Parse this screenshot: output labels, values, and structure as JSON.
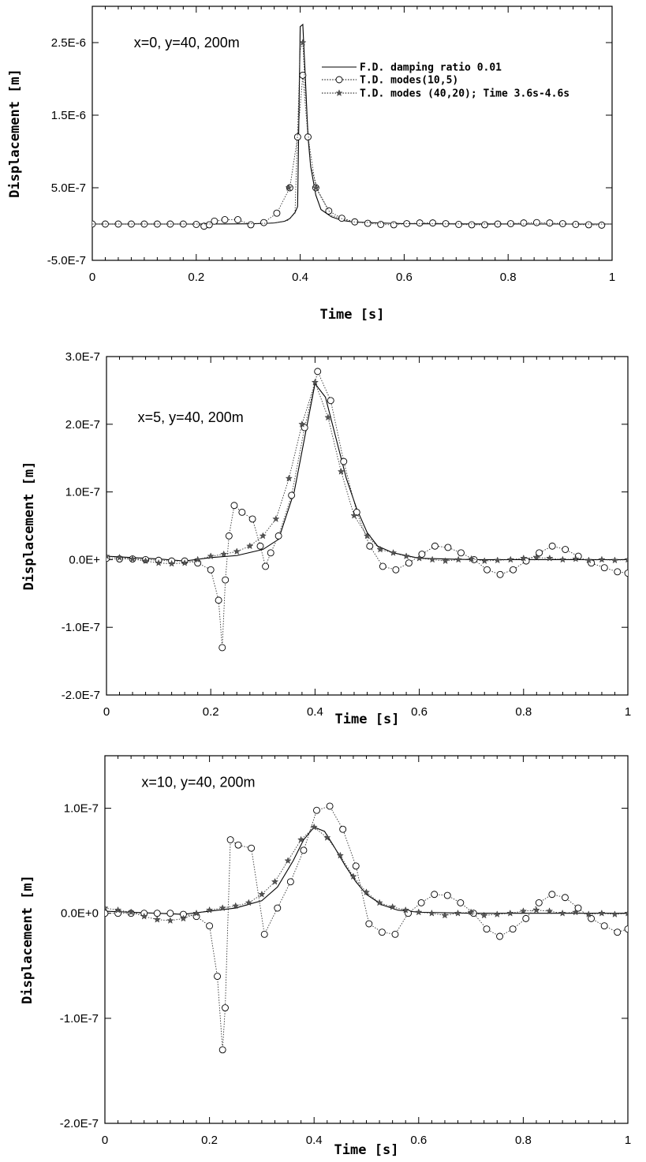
{
  "chart_data": [
    {
      "type": "line",
      "annotation": "x=0, y=40, 200m",
      "xlabel": "Time [s]",
      "ylabel": "Displacement [m]",
      "xlim": [
        0,
        1
      ],
      "ylim": [
        -5e-07,
        3e-06
      ],
      "xticks": [
        0,
        0.2,
        0.4,
        0.6,
        0.8,
        1
      ],
      "xtick_labels": [
        "0",
        "0.2",
        "0.4",
        "0.6",
        "0.8",
        "1"
      ],
      "yticks": [
        -5e-07,
        5e-07,
        1.5e-06,
        2.5e-06
      ],
      "ytick_labels": [
        "-5.0E-7",
        "5.0E-7",
        "1.5E-6",
        "2.5E-6"
      ],
      "grid": false,
      "legend_position": "top-right",
      "series": [
        {
          "name": "F.D.  damping ratio 0.01",
          "style": "solid",
          "marker": "none",
          "x": [
            0,
            0.1,
            0.2,
            0.25,
            0.3,
            0.33,
            0.35,
            0.37,
            0.38,
            0.39,
            0.395,
            0.4,
            0.405,
            0.41,
            0.415,
            0.42,
            0.43,
            0.44,
            0.46,
            0.48,
            0.5,
            0.55,
            0.6,
            0.7,
            0.8,
            0.9,
            1.0
          ],
          "y": [
            0,
            0,
            0,
            1e-09,
            3e-09,
            8e-09,
            1.5e-08,
            3.8e-08,
            7.5e-08,
            1.6e-07,
            2.4e-07,
            2.72e-06,
            2.75e-06,
            2e-06,
            1.2e-06,
            8e-07,
            4e-07,
            2e-07,
            1e-07,
            5e-08,
            3e-08,
            1.5e-08,
            5e-09,
            2e-09,
            1e-09,
            0,
            0
          ]
        },
        {
          "name": "T.D.  modes(10,5)",
          "style": "dotted",
          "marker": "circle",
          "x": [
            0,
            0.025,
            0.05,
            0.075,
            0.1,
            0.125,
            0.15,
            0.175,
            0.2,
            0.215,
            0.225,
            0.235,
            0.255,
            0.28,
            0.305,
            0.33,
            0.355,
            0.38,
            0.395,
            0.405,
            0.415,
            0.43,
            0.455,
            0.48,
            0.505,
            0.53,
            0.555,
            0.58,
            0.605,
            0.63,
            0.655,
            0.68,
            0.705,
            0.73,
            0.755,
            0.78,
            0.805,
            0.83,
            0.855,
            0.88,
            0.905,
            0.93,
            0.955,
            0.98
          ],
          "y": [
            0,
            0,
            0,
            0,
            0,
            0,
            0,
            0,
            -5e-09,
            -3e-08,
            -1e-08,
            4e-08,
            6e-08,
            6e-08,
            -1e-08,
            2e-08,
            1.5e-07,
            5e-07,
            1.2e-06,
            2.05e-06,
            1.2e-06,
            5e-07,
            1.8e-07,
            8e-08,
            3e-08,
            1e-08,
            -5e-09,
            -1e-08,
            5e-09,
            1.5e-08,
            1.5e-08,
            5e-09,
            -5e-09,
            -1e-08,
            -1e-08,
            0,
            5e-09,
            1.5e-08,
            2e-08,
            1.5e-08,
            5e-09,
            -5e-09,
            -1e-08,
            -1.5e-08
          ]
        },
        {
          "name": "T.D.  modes (40,20); Time 3.6s-4.6s",
          "style": "dotted",
          "marker": "star",
          "x": [
            0,
            0.1,
            0.2,
            0.3,
            0.35,
            0.375,
            0.39,
            0.4,
            0.405,
            0.41,
            0.42,
            0.435,
            0.46,
            0.5,
            0.6,
            0.7,
            0.8,
            0.9,
            1.0
          ],
          "y": [
            0,
            0,
            0,
            3e-09,
            1.5e-08,
            4.5e-08,
            1.5e-07,
            2.4e-06,
            2.5e-06,
            1.8e-06,
            8e-07,
            4.5e-07,
            1.2e-07,
            3e-08,
            5e-09,
            2e-09,
            1e-09,
            0,
            0
          ],
          "marker_x": [
            0.378,
            0.405,
            0.43
          ],
          "marker_y": [
            5e-07,
            2.5e-06,
            5e-07
          ]
        }
      ]
    },
    {
      "type": "line",
      "annotation": "x=5, y=40, 200m",
      "xlabel": "Time [s]",
      "ylabel": "Displacement [m]",
      "xlim": [
        0,
        1
      ],
      "ylim": [
        -2e-07,
        3e-07
      ],
      "xticks": [
        0,
        0.2,
        0.4,
        0.6,
        0.8,
        1
      ],
      "xtick_labels": [
        "0",
        "0.2",
        "0.4",
        "0.6",
        "0.8",
        "1"
      ],
      "yticks": [
        -2e-07,
        -1e-07,
        0,
        1e-07,
        2e-07,
        3e-07
      ],
      "ytick_labels": [
        "-2.0E-7",
        "-1.0E-7",
        "0.0E+",
        "1.0E-7",
        "2.0E-7",
        "3.0E-7"
      ],
      "grid": false,
      "series": [
        {
          "style": "solid",
          "marker": "none",
          "x": [
            0,
            0.05,
            0.1,
            0.15,
            0.2,
            0.25,
            0.3,
            0.33,
            0.36,
            0.38,
            0.4,
            0.42,
            0.44,
            0.46,
            0.48,
            0.5,
            0.52,
            0.55,
            0.6,
            0.7,
            0.8,
            0.9,
            1.0
          ],
          "y": [
            5e-09,
            3e-09,
            1e-09,
            -2e-09,
            3e-09,
            6e-09,
            1.5e-08,
            3e-08,
            1e-07,
            1.8e-07,
            2.6e-07,
            2.4e-07,
            1.8e-07,
            1.2e-07,
            7.5e-08,
            4e-08,
            2e-08,
            1e-08,
            2e-09,
            0,
            0,
            0,
            0
          ]
        },
        {
          "style": "dotted",
          "marker": "circle",
          "x": [
            0,
            0.025,
            0.05,
            0.075,
            0.1,
            0.125,
            0.15,
            0.175,
            0.2,
            0.215,
            0.222,
            0.228,
            0.235,
            0.245,
            0.26,
            0.28,
            0.295,
            0.305,
            0.315,
            0.33,
            0.355,
            0.38,
            0.405,
            0.43,
            0.455,
            0.48,
            0.505,
            0.53,
            0.555,
            0.58,
            0.605,
            0.63,
            0.655,
            0.68,
            0.705,
            0.73,
            0.755,
            0.78,
            0.805,
            0.83,
            0.855,
            0.88,
            0.905,
            0.93,
            0.955,
            0.98,
            1.0
          ],
          "y": [
            2e-09,
            1e-09,
            1e-09,
            0,
            -1e-09,
            -2e-09,
            -2e-09,
            -5e-09,
            -1.5e-08,
            -6e-08,
            -1.3e-07,
            -3e-08,
            3.5e-08,
            8e-08,
            7e-08,
            6e-08,
            2e-08,
            -1e-08,
            1e-08,
            3.5e-08,
            9.5e-08,
            1.95e-07,
            2.78e-07,
            2.35e-07,
            1.45e-07,
            7e-08,
            2e-08,
            -1e-08,
            -1.5e-08,
            -5e-09,
            8e-09,
            2e-08,
            1.8e-08,
            1e-08,
            0,
            -1.5e-08,
            -2.2e-08,
            -1.5e-08,
            -2e-09,
            1e-08,
            2e-08,
            1.5e-08,
            5e-09,
            -5e-09,
            -1.2e-08,
            -1.8e-08,
            -2e-08
          ]
        },
        {
          "style": "dotted",
          "marker": "star",
          "x": [
            0,
            0.025,
            0.05,
            0.075,
            0.1,
            0.125,
            0.15,
            0.175,
            0.2,
            0.225,
            0.25,
            0.275,
            0.3,
            0.325,
            0.35,
            0.375,
            0.4,
            0.425,
            0.45,
            0.475,
            0.5,
            0.525,
            0.55,
            0.575,
            0.6,
            0.625,
            0.65,
            0.675,
            0.7,
            0.725,
            0.75,
            0.775,
            0.8,
            0.825,
            0.85,
            0.875,
            0.9,
            0.925,
            0.95,
            0.975,
            1.0
          ],
          "y": [
            5e-09,
            3e-09,
            1e-09,
            -2e-09,
            -5e-09,
            -6e-09,
            -5e-09,
            0,
            5e-09,
            8e-09,
            1.2e-08,
            2e-08,
            3.5e-08,
            6e-08,
            1.2e-07,
            2e-07,
            2.62e-07,
            2.1e-07,
            1.3e-07,
            6.5e-08,
            3.5e-08,
            1.5e-08,
            1e-08,
            5e-09,
            2e-09,
            0,
            -2e-09,
            0,
            1e-09,
            -2e-09,
            -1e-09,
            0,
            2e-09,
            3e-09,
            2e-09,
            0,
            1e-09,
            -1e-09,
            0,
            -1e-09,
            0
          ]
        }
      ]
    },
    {
      "type": "line",
      "annotation": "x=10, y=40, 200m",
      "xlabel": "Time [s]",
      "ylabel": "Displacement [m]",
      "xlim": [
        0,
        1
      ],
      "ylim": [
        -2e-07,
        1.5e-07
      ],
      "xticks": [
        0,
        0.2,
        0.4,
        0.6,
        0.8,
        1
      ],
      "xtick_labels": [
        "0",
        "0.2",
        "0.4",
        "0.6",
        "0.8",
        "1"
      ],
      "yticks": [
        -2e-07,
        -1e-07,
        0,
        1e-07
      ],
      "ytick_labels": [
        "-2.0E-7",
        "-1.0E-7",
        "0.0E+0",
        "1.0E-7"
      ],
      "grid": false,
      "series": [
        {
          "style": "solid",
          "marker": "none",
          "x": [
            0,
            0.05,
            0.1,
            0.15,
            0.2,
            0.25,
            0.3,
            0.33,
            0.36,
            0.38,
            0.4,
            0.42,
            0.44,
            0.46,
            0.48,
            0.5,
            0.53,
            0.56,
            0.6,
            0.7,
            0.8,
            0.9,
            1.0
          ],
          "y": [
            2e-09,
            1e-09,
            0,
            -1e-09,
            2e-09,
            5e-09,
            1.2e-08,
            2.5e-08,
            5e-08,
            7e-08,
            8.2e-08,
            7.8e-08,
            6.2e-08,
            4.5e-08,
            3e-08,
            1.8e-08,
            8e-09,
            3e-09,
            1e-09,
            0,
            0,
            0,
            0
          ]
        },
        {
          "style": "dotted",
          "marker": "circle",
          "x": [
            0,
            0.025,
            0.05,
            0.075,
            0.1,
            0.125,
            0.15,
            0.175,
            0.2,
            0.215,
            0.225,
            0.23,
            0.24,
            0.255,
            0.28,
            0.305,
            0.33,
            0.355,
            0.38,
            0.405,
            0.43,
            0.455,
            0.48,
            0.505,
            0.53,
            0.555,
            0.58,
            0.605,
            0.63,
            0.655,
            0.68,
            0.705,
            0.73,
            0.755,
            0.78,
            0.805,
            0.83,
            0.855,
            0.88,
            0.905,
            0.93,
            0.955,
            0.98,
            1.0
          ],
          "y": [
            0,
            0,
            0,
            0,
            0,
            0,
            -1e-09,
            -3e-09,
            -1.2e-08,
            -6e-08,
            -1.3e-07,
            -9e-08,
            7e-08,
            6.5e-08,
            6.2e-08,
            -2e-08,
            5e-09,
            3e-08,
            6e-08,
            9.8e-08,
            1.02e-07,
            8e-08,
            4.5e-08,
            -1e-08,
            -1.8e-08,
            -2e-08,
            0,
            1e-08,
            1.8e-08,
            1.7e-08,
            1e-08,
            0,
            -1.5e-08,
            -2.2e-08,
            -1.5e-08,
            -5e-09,
            1e-08,
            1.8e-08,
            1.5e-08,
            5e-09,
            -5e-09,
            -1.2e-08,
            -1.8e-08,
            -1.5e-08
          ]
        },
        {
          "style": "dotted",
          "marker": "star",
          "x": [
            0,
            0.025,
            0.05,
            0.075,
            0.1,
            0.125,
            0.15,
            0.175,
            0.2,
            0.225,
            0.25,
            0.275,
            0.3,
            0.325,
            0.35,
            0.375,
            0.4,
            0.425,
            0.45,
            0.475,
            0.5,
            0.525,
            0.55,
            0.575,
            0.6,
            0.625,
            0.65,
            0.675,
            0.7,
            0.725,
            0.75,
            0.775,
            0.8,
            0.825,
            0.85,
            0.875,
            0.9,
            0.925,
            0.95,
            0.975,
            1.0
          ],
          "y": [
            5e-09,
            3e-09,
            1e-09,
            -3e-09,
            -6e-09,
            -7e-09,
            -5e-09,
            0,
            3e-09,
            5e-09,
            7e-09,
            1e-08,
            1.8e-08,
            3e-08,
            5e-08,
            7e-08,
            8.2e-08,
            7.2e-08,
            5.5e-08,
            3.5e-08,
            2e-08,
            1e-08,
            6e-09,
            3e-09,
            1e-09,
            0,
            -2e-09,
            0,
            1e-09,
            -2e-09,
            -1e-09,
            0,
            2e-09,
            3e-09,
            2e-09,
            0,
            1e-09,
            -1e-09,
            0,
            -1e-09,
            0
          ]
        }
      ]
    }
  ]
}
